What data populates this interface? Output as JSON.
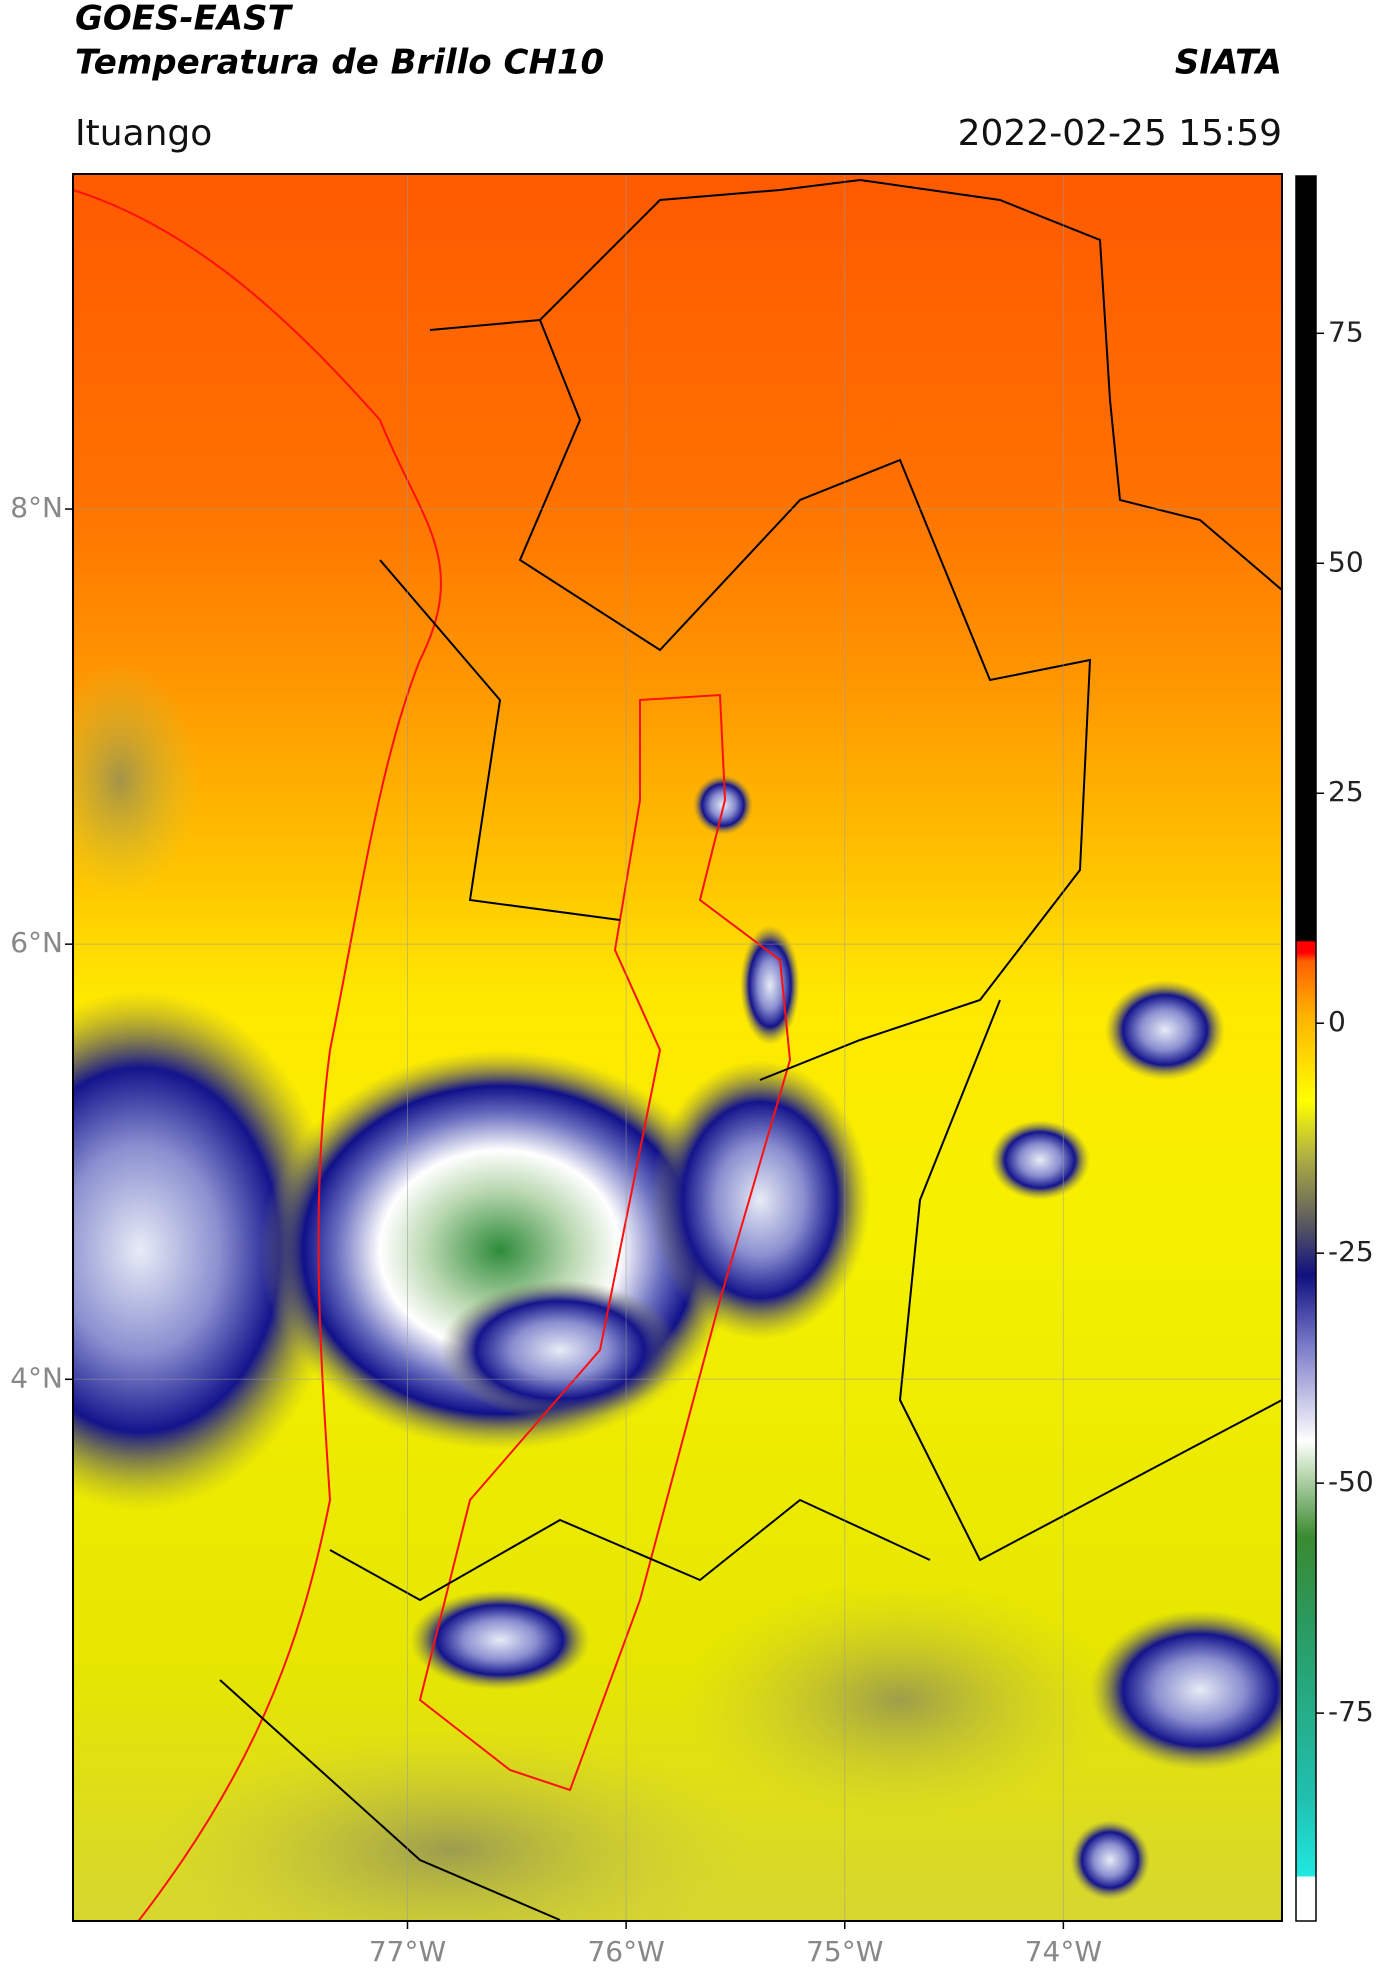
{
  "header": {
    "title": "GOES-EAST",
    "subtitle": "Temperatura de Brillo CH10",
    "agency": "SIATA",
    "location": "Ituango",
    "datetime": "2022-02-25 15:59"
  },
  "map": {
    "xlim": [
      -78.53,
      -73.0
    ],
    "ylim": [
      1.51,
      9.54
    ],
    "xticks": [
      {
        "value": -77,
        "label": "77°W"
      },
      {
        "value": -76,
        "label": "76°W"
      },
      {
        "value": -75,
        "label": "75°W"
      },
      {
        "value": -74,
        "label": "74°W"
      }
    ],
    "yticks": [
      {
        "value": 4,
        "label": "4°N"
      },
      {
        "value": 6,
        "label": "6°N"
      },
      {
        "value": 8,
        "label": "8°N"
      }
    ],
    "grid": true
  },
  "colorbar": {
    "lim": [
      -97.6,
      92.1
    ],
    "ticks": [
      -75,
      -50,
      -25,
      0,
      25,
      50,
      75
    ]
  }
}
